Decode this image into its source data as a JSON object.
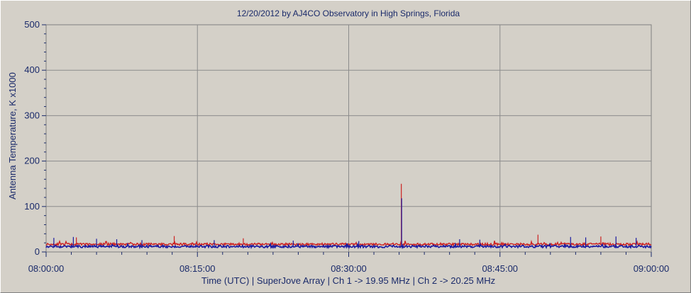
{
  "chart_data": {
    "type": "line",
    "title": "12/20/2012  by  AJ4CO Observatory  in  High Springs, Florida",
    "xlabel": "Time (UTC)   |   SuperJove Array   |   Ch 1 -> 19.95 MHz   |   Ch 2 -> 20.25 MHz",
    "ylabel": "Antenna Temperature, K x1000",
    "x_ticks": [
      "08:00:00",
      "08:15:00",
      "08:30:00",
      "08:45:00",
      "09:00:00"
    ],
    "y_ticks": [
      "0",
      "100",
      "200",
      "300",
      "400",
      "500"
    ],
    "xlim": [
      "08:00:00",
      "09:00:00"
    ],
    "ylim": [
      0,
      500
    ],
    "grid": true,
    "legend": "none",
    "series": [
      {
        "color": "#cc2222",
        "baseline": 17,
        "peaks": [
          {
            "time": "08:35:13",
            "value": 150
          },
          {
            "time": "08:12:42",
            "value": 35
          },
          {
            "time": "08:19:33",
            "value": 30
          },
          {
            "time": "08:48:46",
            "value": 38
          },
          {
            "time": "08:55:00",
            "value": 34
          },
          {
            "time": "08:03:00",
            "value": 32
          }
        ]
      },
      {
        "color": "#1a1aa0",
        "baseline": 12,
        "peaks": [
          {
            "time": "08:35:15",
            "value": 118
          },
          {
            "time": "08:00:46",
            "value": 31
          },
          {
            "time": "08:02:42",
            "value": 33
          },
          {
            "time": "08:05:00",
            "value": 29
          },
          {
            "time": "08:07:00",
            "value": 28
          },
          {
            "time": "08:09:30",
            "value": 26
          },
          {
            "time": "08:16:40",
            "value": 26
          },
          {
            "time": "08:24:30",
            "value": 25
          },
          {
            "time": "08:31:00",
            "value": 24
          },
          {
            "time": "08:41:00",
            "value": 28
          },
          {
            "time": "08:43:00",
            "value": 27
          },
          {
            "time": "08:52:00",
            "value": 33
          },
          {
            "time": "08:53:30",
            "value": 32
          },
          {
            "time": "08:56:30",
            "value": 34
          },
          {
            "time": "08:58:30",
            "value": 31
          }
        ]
      }
    ]
  }
}
